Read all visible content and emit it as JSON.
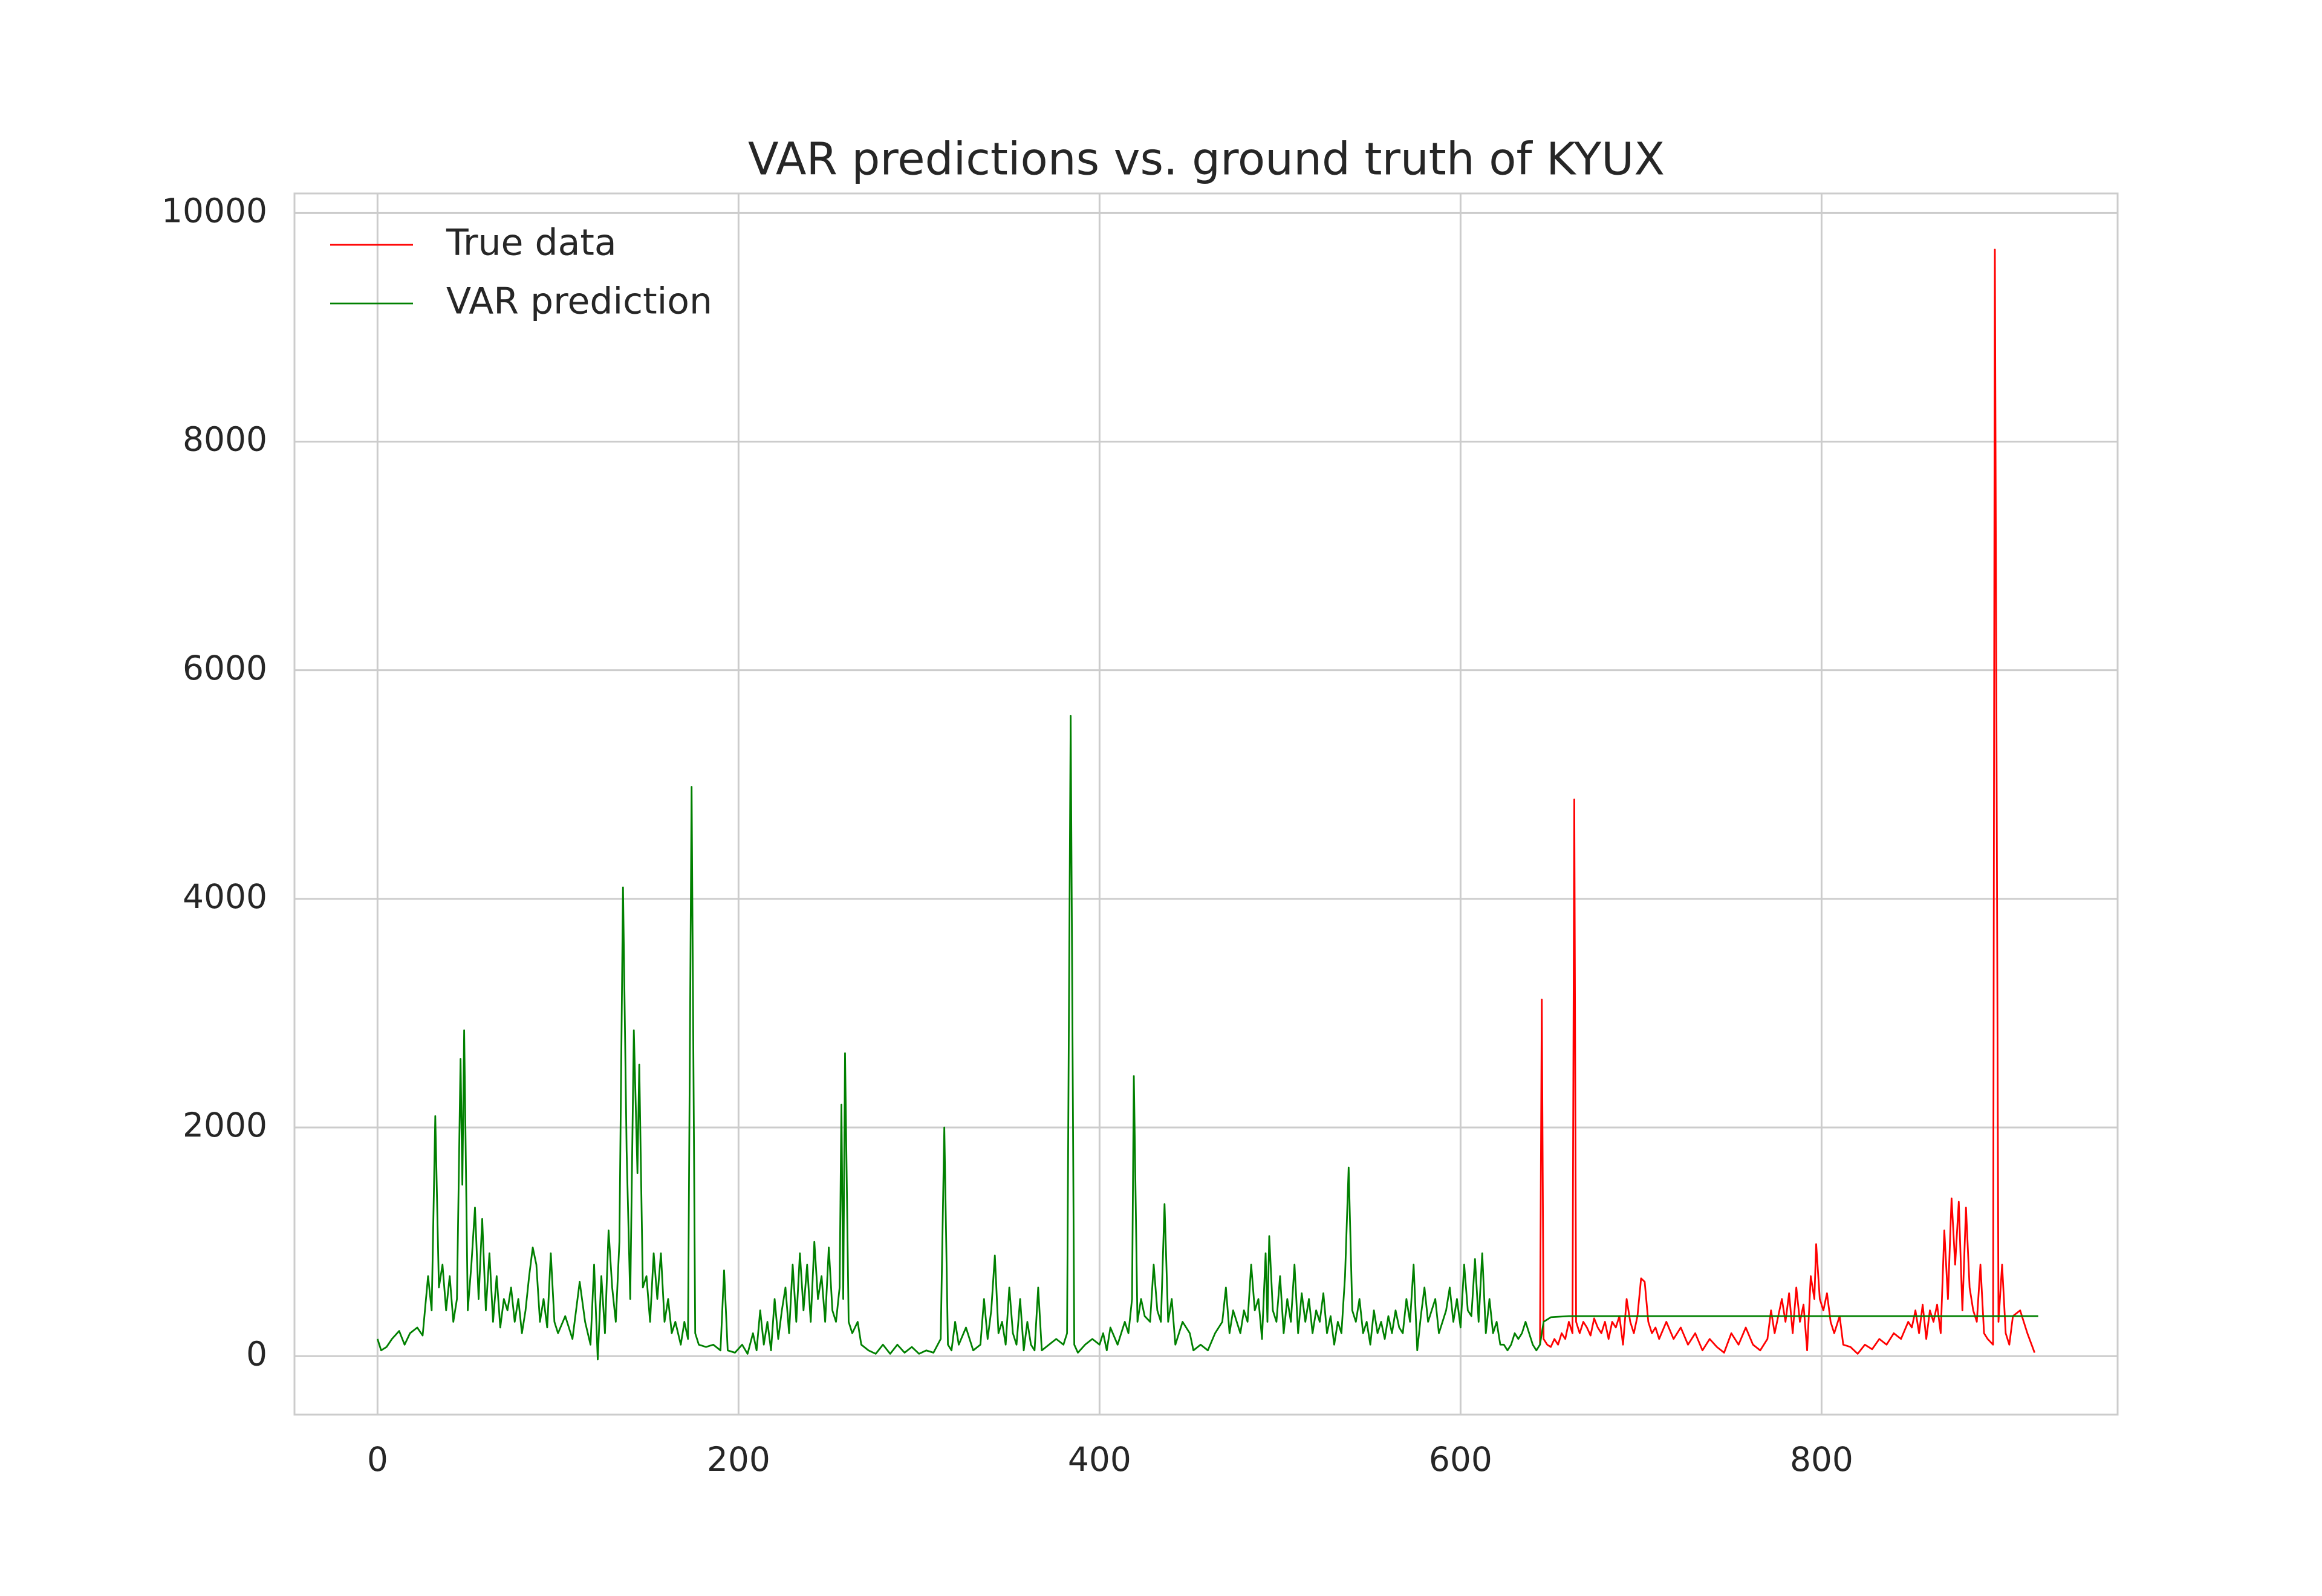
{
  "chart_data": {
    "type": "line",
    "title": "VAR predictions vs. ground truth of KYUX",
    "xlim": [
      -46,
      964
    ],
    "ylim": [
      -512,
      10171
    ],
    "xticks": [
      0,
      200,
      400,
      600,
      800
    ],
    "yticks": [
      0,
      2000,
      4000,
      6000,
      8000,
      10000
    ],
    "grid": true,
    "legend": "upper left",
    "series": [
      {
        "name": "True data",
        "color": "#ff0000",
        "x": [
          644,
          645,
          646,
          648,
          650,
          652,
          654,
          656,
          658,
          660,
          662,
          663,
          664,
          666,
          668,
          670,
          672,
          674,
          676,
          678,
          680,
          682,
          684,
          686,
          688,
          690,
          692,
          694,
          696,
          698,
          700,
          702,
          704,
          706,
          708,
          710,
          714,
          718,
          722,
          726,
          730,
          734,
          738,
          742,
          746,
          750,
          754,
          758,
          762,
          766,
          770,
          772,
          774,
          778,
          780,
          782,
          784,
          786,
          788,
          790,
          792,
          794,
          796,
          797,
          799,
          801,
          803,
          805,
          807,
          810,
          812,
          816,
          820,
          824,
          828,
          832,
          836,
          840,
          844,
          848,
          850,
          852,
          854,
          856,
          858,
          860,
          862,
          864,
          866,
          868,
          870,
          872,
          874,
          876,
          878,
          880,
          882,
          884,
          886,
          888,
          890,
          892,
          895,
          896,
          898,
          900,
          902,
          904,
          906,
          910,
          914,
          918
        ],
        "values": [
          100,
          3120,
          150,
          100,
          80,
          150,
          100,
          200,
          150,
          300,
          200,
          4870,
          300,
          200,
          300,
          250,
          180,
          330,
          250,
          200,
          300,
          150,
          300,
          250,
          350,
          100,
          500,
          300,
          200,
          350,
          680,
          650,
          300,
          200,
          250,
          150,
          300,
          150,
          250,
          100,
          200,
          50,
          150,
          80,
          30,
          200,
          100,
          250,
          100,
          50,
          150,
          400,
          200,
          500,
          300,
          550,
          200,
          600,
          300,
          450,
          50,
          700,
          500,
          980,
          500,
          400,
          550,
          300,
          200,
          350,
          100,
          80,
          20,
          100,
          60,
          150,
          100,
          200,
          150,
          300,
          250,
          400,
          200,
          450,
          150,
          400,
          300,
          450,
          200,
          1100,
          500,
          1380,
          800,
          1350,
          400,
          1300,
          600,
          400,
          300,
          800,
          200,
          150,
          100,
          9680,
          300,
          800,
          200,
          100,
          350,
          400,
          200,
          30
        ]
      },
      {
        "name": "VAR prediction",
        "color": "#008000",
        "x": [
          0,
          2,
          5,
          8,
          12,
          15,
          18,
          22,
          25,
          28,
          30,
          32,
          34,
          36,
          38,
          40,
          42,
          44,
          46,
          47,
          48,
          50,
          52,
          54,
          56,
          58,
          60,
          62,
          64,
          66,
          68,
          70,
          72,
          74,
          76,
          78,
          80,
          82,
          84,
          86,
          88,
          90,
          92,
          94,
          96,
          98,
          100,
          104,
          108,
          112,
          115,
          118,
          120,
          122,
          124,
          126,
          128,
          130,
          132,
          134,
          136,
          138,
          140,
          142,
          144,
          145,
          147,
          149,
          151,
          153,
          155,
          157,
          159,
          161,
          163,
          165,
          168,
          170,
          172,
          174,
          176,
          178,
          182,
          186,
          190,
          192,
          194,
          198,
          202,
          205,
          208,
          210,
          212,
          214,
          216,
          218,
          220,
          222,
          224,
          226,
          228,
          230,
          232,
          234,
          236,
          238,
          240,
          242,
          244,
          246,
          248,
          250,
          252,
          254,
          256,
          257,
          258,
          259,
          261,
          263,
          266,
          268,
          272,
          276,
          280,
          284,
          288,
          292,
          296,
          300,
          304,
          308,
          312,
          314,
          316,
          318,
          320,
          322,
          326,
          330,
          334,
          336,
          338,
          340,
          342,
          344,
          346,
          348,
          350,
          352,
          354,
          356,
          358,
          360,
          362,
          364,
          366,
          368,
          372,
          376,
          380,
          382,
          384,
          386,
          388,
          392,
          396,
          400,
          402,
          404,
          406,
          410,
          414,
          416,
          418,
          419,
          421,
          423,
          425,
          428,
          430,
          432,
          434,
          436,
          438,
          440,
          442,
          446,
          450,
          452,
          456,
          460,
          464,
          468,
          470,
          472,
          474,
          476,
          478,
          480,
          482,
          484,
          486,
          488,
          490,
          492,
          493,
          494,
          496,
          498,
          500,
          502,
          504,
          506,
          508,
          510,
          512,
          514,
          516,
          518,
          520,
          522,
          524,
          526,
          528,
          530,
          532,
          534,
          536,
          538,
          540,
          542,
          544,
          546,
          548,
          550,
          552,
          554,
          556,
          558,
          560,
          562,
          564,
          566,
          568,
          570,
          572,
          574,
          576,
          578,
          580,
          582,
          584,
          586,
          588,
          590,
          592,
          594,
          596,
          598,
          600,
          602,
          604,
          606,
          608,
          610,
          612,
          614,
          616,
          618,
          620,
          622,
          624,
          626,
          628,
          630,
          632,
          634,
          636,
          638,
          640,
          642,
          644,
          646,
          650,
          660,
          920
        ],
        "values": [
          150,
          50,
          80,
          150,
          220,
          100,
          200,
          250,
          180,
          700,
          400,
          2100,
          600,
          800,
          400,
          700,
          300,
          500,
          2600,
          1500,
          2850,
          400,
          800,
          1300,
          500,
          1200,
          400,
          900,
          300,
          700,
          250,
          500,
          400,
          600,
          300,
          500,
          200,
          400,
          700,
          950,
          800,
          300,
          500,
          250,
          900,
          300,
          200,
          350,
          150,
          650,
          300,
          100,
          800,
          -30,
          700,
          200,
          1100,
          600,
          300,
          1000,
          4100,
          1800,
          500,
          2850,
          1600,
          2550,
          600,
          700,
          300,
          900,
          500,
          900,
          300,
          500,
          200,
          300,
          100,
          300,
          150,
          4980,
          200,
          100,
          80,
          100,
          50,
          750,
          50,
          30,
          100,
          20,
          200,
          50,
          400,
          100,
          300,
          50,
          500,
          150,
          400,
          600,
          200,
          800,
          300,
          900,
          400,
          800,
          300,
          1000,
          500,
          700,
          300,
          950,
          400,
          300,
          600,
          2200,
          500,
          2650,
          300,
          200,
          300,
          100,
          50,
          20,
          100,
          20,
          100,
          30,
          80,
          20,
          50,
          30,
          150,
          2000,
          100,
          50,
          300,
          100,
          250,
          50,
          100,
          500,
          150,
          400,
          880,
          200,
          300,
          100,
          600,
          200,
          100,
          500,
          50,
          300,
          100,
          50,
          600,
          50,
          100,
          150,
          100,
          200,
          5600,
          100,
          30,
          100,
          150,
          100,
          200,
          50,
          250,
          100,
          300,
          200,
          500,
          2450,
          300,
          500,
          350,
          300,
          800,
          400,
          300,
          1330,
          300,
          500,
          100,
          300,
          200,
          50,
          100,
          50,
          200,
          300,
          600,
          200,
          400,
          300,
          200,
          400,
          300,
          800,
          400,
          500,
          150,
          900,
          300,
          1050,
          400,
          300,
          700,
          200,
          500,
          300,
          800,
          200,
          550,
          300,
          500,
          200,
          400,
          300,
          550,
          200,
          350,
          100,
          300,
          200,
          700,
          1650,
          400,
          300,
          500,
          200,
          300,
          100,
          400,
          200,
          300,
          150,
          350,
          200,
          400,
          250,
          200,
          500,
          300,
          800,
          50,
          350,
          600,
          300,
          400,
          500,
          200,
          300,
          400,
          600,
          300,
          500,
          250,
          800,
          400,
          350,
          850,
          300,
          900,
          200,
          500,
          200,
          300,
          100,
          100,
          50,
          100,
          200,
          150,
          200,
          300,
          200,
          100,
          50,
          100,
          300,
          340,
          350,
          350
        ]
      }
    ]
  }
}
